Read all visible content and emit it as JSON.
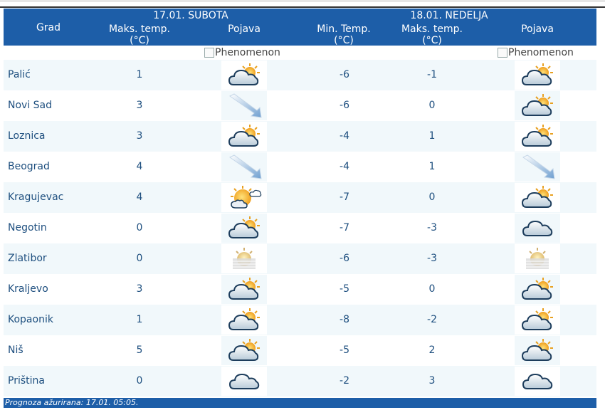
{
  "header": {
    "day1": "17.01. SUBOTA",
    "day2": "18.01. NEDELJA",
    "col_city": "Grad",
    "col_max1_l1": "Maks. temp.",
    "col_max1_l2": "(°C)",
    "col_phen1": "Pojava",
    "col_min2_l1": "Min. Temp.",
    "col_min2_l2": "(°C)",
    "col_max2_l1": "Maks. temp.",
    "col_max2_l2": "(°C)",
    "col_phen2": "Pojava"
  },
  "phenomenon_alt": "Phenomenon",
  "rows": [
    {
      "city": "Palić",
      "max1": "1",
      "icon1": "partly-cloudy-sun-icon",
      "min2": "-6",
      "max2": "-1",
      "icon2": "partly-cloudy-sun-icon"
    },
    {
      "city": "Novi Sad",
      "max1": "3",
      "icon1": "wind-arrow-icon",
      "min2": "-6",
      "max2": "0",
      "icon2": "partly-cloudy-sun-icon"
    },
    {
      "city": "Loznica",
      "max1": "3",
      "icon1": "partly-cloudy-sun-icon",
      "min2": "-4",
      "max2": "1",
      "icon2": "partly-cloudy-sun-icon"
    },
    {
      "city": "Beograd",
      "max1": "4",
      "icon1": "wind-arrow-icon",
      "min2": "-4",
      "max2": "1",
      "icon2": "wind-arrow-icon"
    },
    {
      "city": "Kragujevac",
      "max1": "4",
      "icon1": "mostly-sunny-icon",
      "min2": "-7",
      "max2": "0",
      "icon2": "partly-cloudy-sun-icon"
    },
    {
      "city": "Negotin",
      "max1": "0",
      "icon1": "partly-cloudy-sun-icon",
      "min2": "-7",
      "max2": "-3",
      "icon2": "cloud-icon"
    },
    {
      "city": "Zlatibor",
      "max1": "0",
      "icon1": "fog-sun-icon",
      "min2": "-6",
      "max2": "-3",
      "icon2": "fog-sun-icon"
    },
    {
      "city": "Kraljevo",
      "max1": "3",
      "icon1": "partly-cloudy-sun-icon",
      "min2": "-5",
      "max2": "0",
      "icon2": "partly-cloudy-sun-icon"
    },
    {
      "city": "Kopaonik",
      "max1": "1",
      "icon1": "partly-cloudy-sun-icon",
      "min2": "-8",
      "max2": "-2",
      "icon2": "partly-cloudy-sun-icon"
    },
    {
      "city": "Niš",
      "max1": "5",
      "icon1": "partly-cloudy-sun-icon",
      "min2": "-5",
      "max2": "2",
      "icon2": "partly-cloudy-sun-icon"
    },
    {
      "city": "Priština",
      "max1": "0",
      "icon1": "cloud-icon",
      "min2": "-2",
      "max2": "3",
      "icon2": "cloud-icon"
    }
  ],
  "footer": "Prognoza ažurirana:  17.01. 05:05.",
  "colors": {
    "header_bg": "#1d5ea8",
    "row_alt": "#f1f8fb",
    "text": "#1e4f7f"
  }
}
